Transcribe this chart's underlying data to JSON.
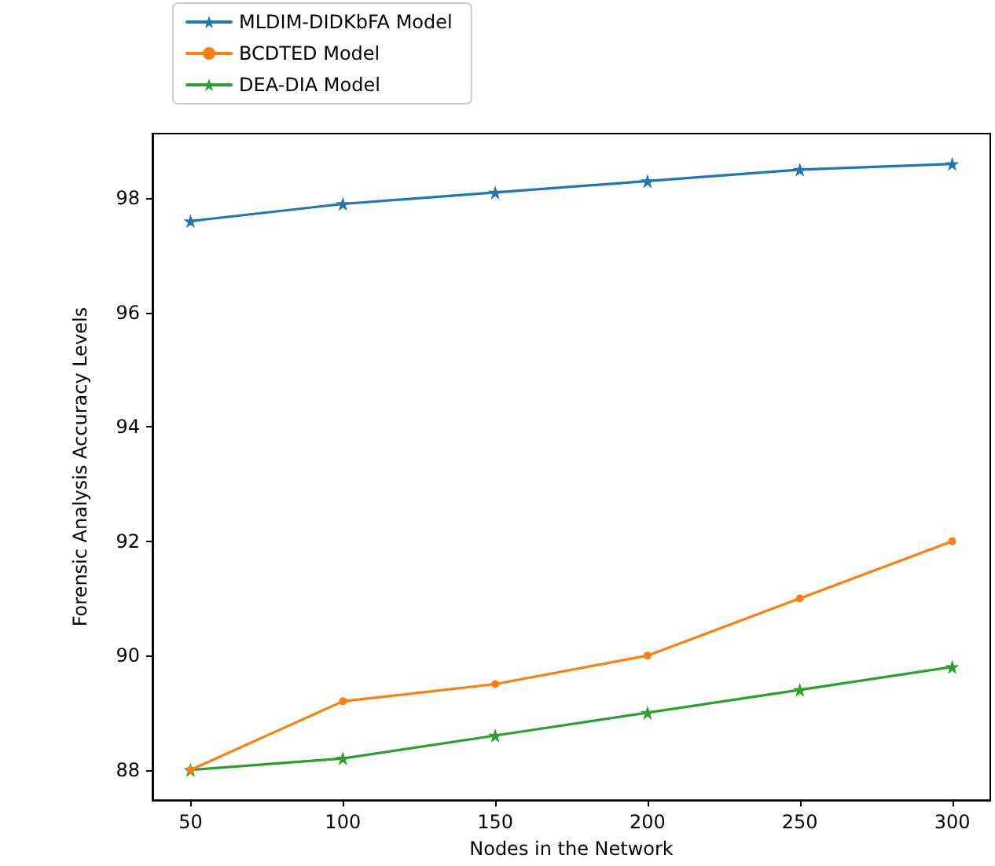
{
  "chart_data": {
    "type": "line",
    "xlabel": "Nodes in the Network",
    "ylabel": "Forensic Analysis Accuracy Levels",
    "x": [
      50,
      100,
      150,
      200,
      250,
      300
    ],
    "series": [
      {
        "name": "MLDIM-DIDKbFA Model",
        "color": "#1f77b4",
        "marker": "star",
        "values": [
          97.6,
          97.9,
          98.1,
          98.3,
          98.5,
          98.6
        ]
      },
      {
        "name": "BCDTED Model",
        "color": "#ff7f0e",
        "marker": "circle",
        "values": [
          88.0,
          89.2,
          89.5,
          90.0,
          91.0,
          92.0
        ]
      },
      {
        "name": "DEA-DIA Model",
        "color": "#2ca02c",
        "marker": "star",
        "values": [
          88.0,
          88.2,
          88.6,
          89.0,
          89.4,
          89.8
        ]
      }
    ],
    "xlim": [
      37.5,
      312.5
    ],
    "xticks": [
      50,
      100,
      150,
      200,
      250,
      300
    ],
    "ylim": [
      87.47,
      99.13
    ],
    "yticks": [
      88,
      90,
      92,
      94,
      96,
      98
    ],
    "grid": false,
    "legend": "top left",
    "line_style": "solid"
  }
}
